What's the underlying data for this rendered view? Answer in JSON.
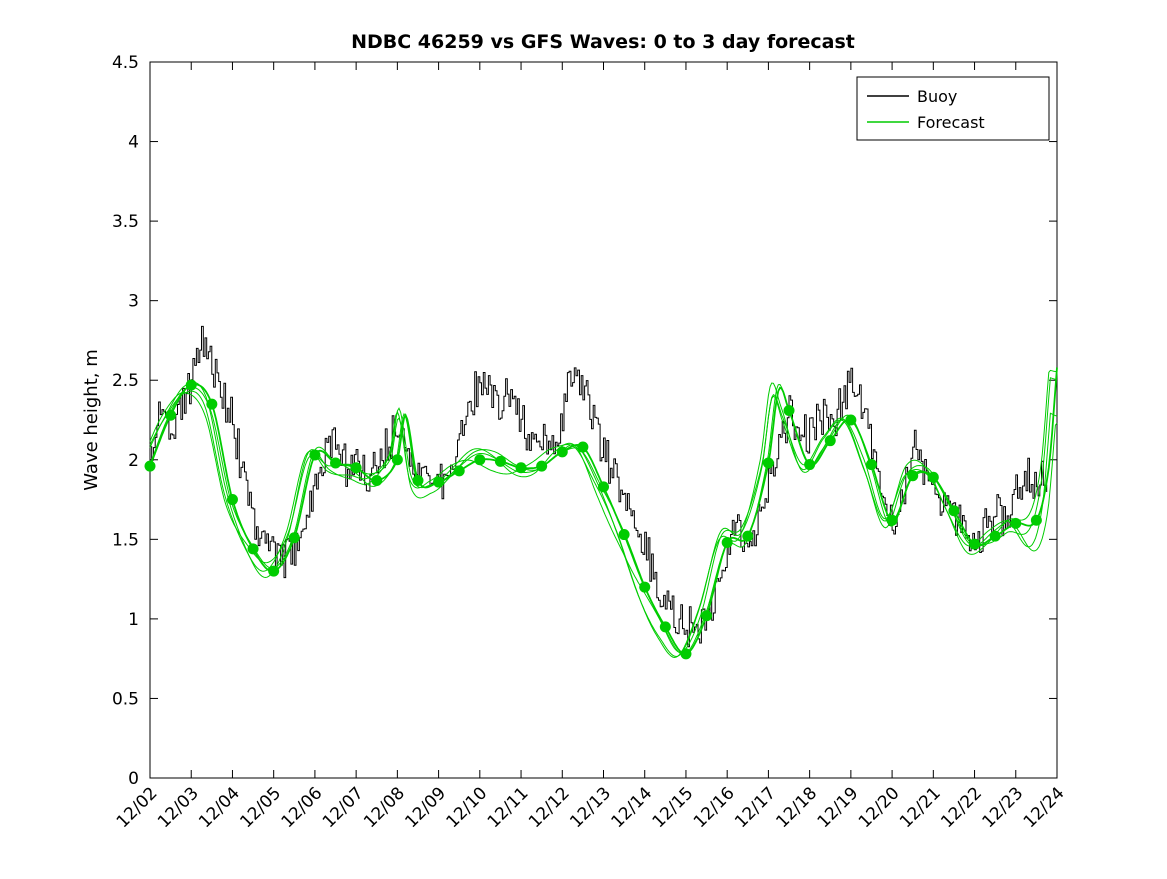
{
  "chart_data": {
    "type": "line",
    "title": "NDBC 46259 vs GFS Waves: 0 to 3 day forecast",
    "ylabel": "Wave height, m",
    "ylim": [
      0,
      4.5
    ],
    "ytick_step": 0.5,
    "x_days": 22,
    "xtick_labels": [
      "12/02",
      "12/03",
      "12/04",
      "12/05",
      "12/06",
      "12/07",
      "12/08",
      "12/09",
      "12/10",
      "12/11",
      "12/12",
      "12/13",
      "12/14",
      "12/15",
      "12/16",
      "12/17",
      "12/18",
      "12/19",
      "12/20",
      "12/21",
      "12/22",
      "12/23",
      "12/24"
    ],
    "frame_color": "#000000",
    "background_color": "#ffffff",
    "grid": false,
    "legend": {
      "position": "top-right",
      "entries": [
        {
          "label": "Buoy",
          "color": "#000000"
        },
        {
          "label": "Forecast",
          "color": "#00cc00"
        }
      ]
    },
    "series": {
      "buoy": {
        "name": "Buoy",
        "color": "#000000",
        "step_hours": 6,
        "start_day": 0,
        "values": [
          2.0,
          2.3,
          2.2,
          2.35,
          2.5,
          2.8,
          2.6,
          2.4,
          2.25,
          1.9,
          1.62,
          1.5,
          1.45,
          1.38,
          1.45,
          1.6,
          1.85,
          2.05,
          2.1,
          1.95,
          1.95,
          1.88,
          2.0,
          2.1,
          2.2,
          2.1,
          1.92,
          1.82,
          1.85,
          1.95,
          2.1,
          2.35,
          2.5,
          2.45,
          2.35,
          2.45,
          2.25,
          2.05,
          2.15,
          2.1,
          2.3,
          2.6,
          2.45,
          2.25,
          2.05,
          1.9,
          1.75,
          1.6,
          1.45,
          1.28,
          1.1,
          1.02,
          0.95,
          0.95,
          1.02,
          1.15,
          1.5,
          1.55,
          1.48,
          1.6,
          1.85,
          2.1,
          2.28,
          2.2,
          2.15,
          2.3,
          2.2,
          2.35,
          2.55,
          2.35,
          2.1,
          1.85,
          1.55,
          1.75,
          2.1,
          1.95,
          1.9,
          1.72,
          1.65,
          1.58,
          1.45,
          1.58,
          1.7,
          1.58,
          1.78,
          1.92,
          1.85,
          1.88
        ],
        "noise": {
          "seed": 20231202,
          "amp": 0.13,
          "substep_hours": 1
        }
      },
      "forecast": {
        "name": "Forecast",
        "color": "#00cc00",
        "marker_interval_days": 0.5,
        "start_day": 0,
        "markers": [
          1.96,
          2.28,
          2.47,
          2.35,
          1.75,
          1.44,
          1.3,
          1.51,
          2.03,
          1.98,
          1.95,
          1.87,
          2.0,
          1.87,
          1.86,
          1.93,
          2.0,
          1.99,
          1.95,
          1.96,
          2.05,
          2.08,
          1.83,
          1.53,
          1.2,
          0.95,
          0.78,
          1.02,
          1.48,
          1.52,
          1.98,
          2.31,
          1.97,
          2.12,
          2.25,
          1.97,
          1.62,
          1.9,
          1.89,
          1.68,
          1.47,
          1.52,
          1.6,
          1.62
        ],
        "extra_line_points": [
          [
            6.2,
            2.28
          ],
          [
            15.25,
            2.44
          ],
          [
            21.8,
            1.95
          ],
          [
            22.0,
            2.58
          ]
        ],
        "variants": {
          "count": 4,
          "seed": 77,
          "lag_max": 0.22,
          "amp1": 0.05,
          "amp2": 0.035,
          "end_fan_start": 20.8,
          "end_fan_max": 0.35
        }
      }
    }
  }
}
